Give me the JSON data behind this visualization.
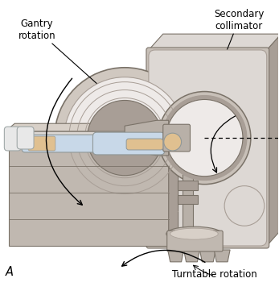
{
  "label_gantry": "Gantry\nrotation",
  "label_secondary": "Secondary\ncollimator",
  "label_turntable": "Turntable rotation",
  "label_A": "A",
  "bg_color": "#ffffff",
  "c_body": "#c8c0b8",
  "c_dark": "#7a7268",
  "c_mid": "#a89e96",
  "c_light": "#ddd8d4",
  "c_lighter": "#eeeae8",
  "c_gantry_head": "#d0c8c0",
  "c_gantry_arm": "#b8b0a8",
  "c_table": "#c0b8b0",
  "c_table_light": "#d8d0c8",
  "c_patient_gown": "#c8d8e8",
  "c_patient_skin": "#e0c090",
  "c_sock": "#e8e8e8",
  "text_color": "#000000",
  "font_size": 8.5
}
